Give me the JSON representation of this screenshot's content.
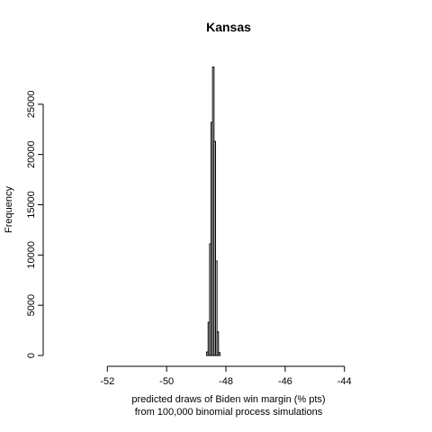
{
  "chart_data": {
    "type": "bar",
    "title": "Kansas",
    "xlabel_line1": "predicted draws of Biden win margin (% pts)",
    "xlabel_line2": "from 100,000 binomial process simulations",
    "ylabel": "Frequency",
    "xlim": [
      -53.8,
      -42.2
    ],
    "ylim": [
      0,
      30000
    ],
    "x_ticks": [
      -52,
      -50,
      -48,
      -46,
      -44
    ],
    "y_ticks": [
      0,
      5000,
      10000,
      15000,
      20000,
      25000
    ],
    "grid": false,
    "bin_width": 0.05,
    "bins": [
      {
        "x0": -48.65,
        "count": 350
      },
      {
        "x0": -48.6,
        "count": 3300
      },
      {
        "x0": -48.55,
        "count": 11100
      },
      {
        "x0": -48.5,
        "count": 23200
      },
      {
        "x0": -48.45,
        "count": 28700
      },
      {
        "x0": -48.4,
        "count": 21300
      },
      {
        "x0": -48.35,
        "count": 9400
      },
      {
        "x0": -48.3,
        "count": 2350
      },
      {
        "x0": -48.25,
        "count": 300
      }
    ]
  }
}
